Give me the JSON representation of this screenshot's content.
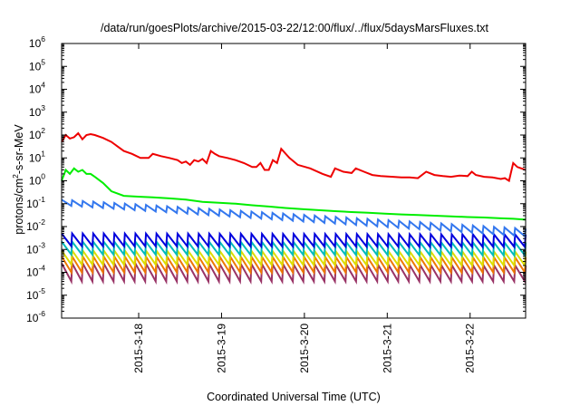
{
  "chart_data": {
    "type": "line",
    "title": "/data/run/goesPlots/archive/2015-03-22/12:00/flux/../flux/5daysMarsFluxes.txt",
    "xlabel": "Coordinated Universal Time (UTC)",
    "ylabel": {
      "base": "protons/cm",
      "sup": "2",
      "rest": "-s-sr-MeV"
    },
    "yscale": "log",
    "ylim": [
      1e-06,
      1000000.0
    ],
    "ytick_exponents": [
      "-6",
      "-5",
      "-4",
      "-3",
      "-2",
      "-1",
      "0",
      "1",
      "2",
      "3",
      "4",
      "5",
      "6"
    ],
    "ytick_base": "10",
    "xlim_days": [
      0,
      5.6
    ],
    "xticks": [
      {
        "label": "2015-3-18",
        "day": 0.93
      },
      {
        "label": "2015-3-19",
        "day": 1.93
      },
      {
        "label": "2015-3-20",
        "day": 2.93
      },
      {
        "label": "2015-3-21",
        "day": 3.93
      },
      {
        "label": "2015-3-22",
        "day": 4.93
      }
    ],
    "grid": false,
    "legend": "none",
    "series": [
      {
        "color": "#ee0000",
        "x": [
          0.0,
          0.05,
          0.1,
          0.15,
          0.2,
          0.25,
          0.3,
          0.35,
          0.4,
          0.5,
          0.6,
          0.75,
          0.85,
          0.95,
          1.05,
          1.1,
          1.2,
          1.3,
          1.4,
          1.45,
          1.5,
          1.55,
          1.6,
          1.65,
          1.7,
          1.75,
          1.8,
          1.85,
          1.9,
          2.0,
          2.1,
          2.2,
          2.3,
          2.35,
          2.4,
          2.45,
          2.5,
          2.55,
          2.6,
          2.65,
          2.75,
          2.85,
          3.0,
          3.15,
          3.25,
          3.3,
          3.4,
          3.5,
          3.55,
          3.65,
          3.75,
          3.85,
          4.0,
          4.1,
          4.2,
          4.3,
          4.4,
          4.5,
          4.6,
          4.7,
          4.8,
          4.9,
          4.95,
          5.0,
          5.1,
          5.2,
          5.3,
          5.35,
          5.4,
          5.45,
          5.5,
          5.6
        ],
        "values": [
          50,
          100,
          70,
          80,
          120,
          65,
          100,
          110,
          100,
          75,
          50,
          20,
          15,
          10,
          10,
          15,
          12,
          10,
          8,
          6,
          7,
          5,
          8,
          7,
          9,
          6,
          20,
          15,
          12,
          10,
          8,
          6,
          4,
          4,
          6,
          3,
          3,
          8,
          6,
          25,
          10,
          5,
          3.5,
          2,
          1.5,
          3.5,
          2.5,
          2.2,
          3.5,
          2.5,
          1.8,
          1.6,
          1.5,
          1.4,
          1.4,
          1.3,
          2.5,
          1.8,
          1.6,
          1.5,
          1.7,
          1.6,
          2.5,
          1.8,
          1.5,
          1.4,
          1.2,
          1.3,
          1,
          6,
          4,
          3
        ]
      },
      {
        "color": "#00ee00",
        "x": [
          0.0,
          0.05,
          0.1,
          0.15,
          0.2,
          0.25,
          0.3,
          0.35,
          0.4,
          0.5,
          0.6,
          0.75,
          0.85,
          0.95,
          1.1,
          1.3,
          1.5,
          1.7,
          1.9,
          2.1,
          2.3,
          2.5,
          2.7,
          2.9,
          3.1,
          3.3,
          3.5,
          3.7,
          3.9,
          4.1,
          4.3,
          4.5,
          4.7,
          4.9,
          5.1,
          5.3,
          5.45,
          5.6
        ],
        "values": [
          1,
          3,
          2,
          3.5,
          2.5,
          3,
          2,
          2,
          1.5,
          0.8,
          0.35,
          0.22,
          0.21,
          0.2,
          0.19,
          0.17,
          0.15,
          0.12,
          0.11,
          0.1,
          0.085,
          0.075,
          0.065,
          0.058,
          0.052,
          0.047,
          0.043,
          0.04,
          0.037,
          0.034,
          0.032,
          0.03,
          0.028,
          0.026,
          0.025,
          0.023,
          0.022,
          0.02
        ]
      }
    ],
    "sawtooth_series": [
      {
        "color": "#3377ee",
        "peak_start": 0.15,
        "peak_end": 0.008,
        "trough_start": 0.08,
        "trough_end": 0.0035,
        "cycles": 44
      },
      {
        "color": "#0000dd",
        "peak_start": 0.005,
        "peak_end": 0.0045,
        "trough_start": 0.0014,
        "trough_end": 0.0013,
        "cycles": 44
      },
      {
        "color": "#00bbbb",
        "peak_start": 0.0022,
        "peak_end": 0.002,
        "trough_start": 0.0006,
        "trough_end": 0.00055,
        "cycles": 44
      },
      {
        "color": "#dddd00",
        "peak_start": 0.0009,
        "peak_end": 0.0008,
        "trough_start": 0.00022,
        "trough_end": 0.0002,
        "cycles": 44
      },
      {
        "color": "#ee7700",
        "peak_start": 0.0005,
        "peak_end": 0.00045,
        "trough_start": 0.0001,
        "trough_end": 0.0001,
        "cycles": 44
      },
      {
        "color": "#993366",
        "peak_start": 0.00025,
        "peak_end": 0.0002,
        "trough_start": 4e-05,
        "trough_end": 4e-05,
        "cycles": 44
      }
    ]
  }
}
